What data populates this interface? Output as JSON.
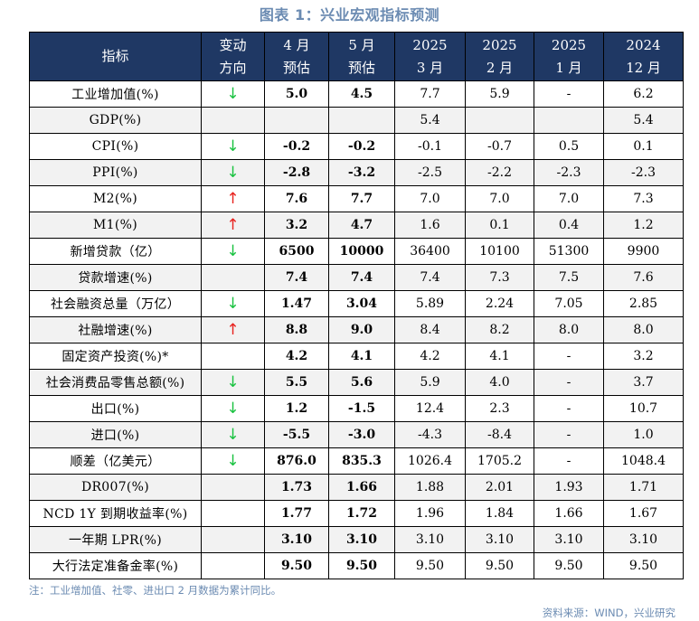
{
  "title": "图表 1：兴业宏观指标预测",
  "header": {
    "col0": "指标",
    "col1_line1": "变动",
    "col1_line2": "方向",
    "col2_line1": "4 月",
    "col2_line2": "预估",
    "col3_line1": "5 月",
    "col3_line2": "预估",
    "col4_line1": "2025",
    "col4_line2": "3 月",
    "col5_line1": "2025",
    "col5_line2": "2 月",
    "col6_line1": "2025",
    "col6_line2": "1 月",
    "col7_line1": "2024",
    "col7_line2": "12 月"
  },
  "rows": [
    {
      "name": "工业增加值(%)",
      "dir": "↓",
      "dir_type": "down",
      "apr": "5.0",
      "may": "4.5",
      "mar": "7.7",
      "feb": "5.9",
      "jan": "-",
      "dec": "6.2"
    },
    {
      "name": "GDP(%)",
      "dir": "",
      "dir_type": "",
      "apr": "",
      "may": "",
      "mar": "5.4",
      "feb": "",
      "jan": "",
      "dec": "5.4"
    },
    {
      "name": "CPI(%)",
      "dir": "↓",
      "dir_type": "down",
      "apr": "-0.2",
      "may": "-0.2",
      "mar": "-0.1",
      "feb": "-0.7",
      "jan": "0.5",
      "dec": "0.1"
    },
    {
      "name": "PPI(%)",
      "dir": "↓",
      "dir_type": "down",
      "apr": "-2.8",
      "may": "-3.2",
      "mar": "-2.5",
      "feb": "-2.2",
      "jan": "-2.3",
      "dec": "-2.3"
    },
    {
      "name": "M2(%)",
      "dir": "↑",
      "dir_type": "up",
      "apr": "7.6",
      "may": "7.7",
      "mar": "7.0",
      "feb": "7.0",
      "jan": "7.0",
      "dec": "7.3"
    },
    {
      "name": "M1(%)",
      "dir": "↑",
      "dir_type": "up",
      "apr": "3.2",
      "may": "4.7",
      "mar": "1.6",
      "feb": "0.1",
      "jan": "0.4",
      "dec": "1.2"
    },
    {
      "name": "新增贷款（亿）",
      "dir": "↓",
      "dir_type": "down",
      "apr": "6500",
      "may": "10000",
      "mar": "36400",
      "feb": "10100",
      "jan": "51300",
      "dec": "9900"
    },
    {
      "name": "贷款增速(%)",
      "dir": "",
      "dir_type": "",
      "apr": "7.4",
      "may": "7.4",
      "mar": "7.4",
      "feb": "7.3",
      "jan": "7.5",
      "dec": "7.6"
    },
    {
      "name": "社会融资总量（万亿）",
      "dir": "↓",
      "dir_type": "down",
      "apr": "1.47",
      "may": "3.04",
      "mar": "5.89",
      "feb": "2.24",
      "jan": "7.05",
      "dec": "2.85"
    },
    {
      "name": "社融增速(%)",
      "dir": "↑",
      "dir_type": "up",
      "apr": "8.8",
      "may": "9.0",
      "mar": "8.4",
      "feb": "8.2",
      "jan": "8.0",
      "dec": "8.0"
    },
    {
      "name": "固定资产投资(%)*",
      "dir": "",
      "dir_type": "",
      "apr": "4.2",
      "may": "4.1",
      "mar": "4.2",
      "feb": "4.1",
      "jan": "-",
      "dec": "3.2"
    },
    {
      "name": "社会消费品零售总额(%)",
      "dir": "↓",
      "dir_type": "down",
      "apr": "5.5",
      "may": "5.6",
      "mar": "5.9",
      "feb": "4.0",
      "jan": "-",
      "dec": "3.7"
    },
    {
      "name": "出口(%)",
      "dir": "↓",
      "dir_type": "down",
      "apr": "1.2",
      "may": "-1.5",
      "mar": "12.4",
      "feb": "2.3",
      "jan": "-",
      "dec": "10.7"
    },
    {
      "name": "进口(%)",
      "dir": "↓",
      "dir_type": "down",
      "apr": "-5.5",
      "may": "-3.0",
      "mar": "-4.3",
      "feb": "-8.4",
      "jan": "-",
      "dec": "1.0"
    },
    {
      "name": "顺差（亿美元）",
      "dir": "↓",
      "dir_type": "down",
      "apr": "876.0",
      "may": "835.3",
      "mar": "1026.4",
      "feb": "1705.2",
      "jan": "-",
      "dec": "1048.4"
    },
    {
      "name": "DR007(%)",
      "dir": "",
      "dir_type": "",
      "apr": "1.73",
      "may": "1.66",
      "mar": "1.88",
      "feb": "2.01",
      "jan": "1.93",
      "dec": "1.71"
    },
    {
      "name": "NCD 1Y 到期收益率(%)",
      "dir": "",
      "dir_type": "",
      "apr": "1.77",
      "may": "1.72",
      "mar": "1.96",
      "feb": "1.84",
      "jan": "1.66",
      "dec": "1.67"
    },
    {
      "name": "一年期 LPR(%)",
      "dir": "",
      "dir_type": "",
      "apr": "3.10",
      "may": "3.10",
      "mar": "3.10",
      "feb": "3.10",
      "jan": "3.10",
      "dec": "3.10"
    },
    {
      "name": "大行法定准备金率(%)",
      "dir": "",
      "dir_type": "",
      "apr": "9.50",
      "may": "9.50",
      "mar": "9.50",
      "feb": "9.50",
      "jan": "9.50",
      "dec": "9.50"
    }
  ],
  "note": "注：工业增加值、社零、进出口 2 月数据为累计同比。",
  "source": "资料来源：WIND，兴业研究",
  "colors": {
    "header_bg": "#1f3864",
    "alt_row_bg": "#f2f2f2",
    "up_arrow": "#e8231f",
    "down_arrow": "#19c240",
    "title": "#6b8bb2"
  }
}
